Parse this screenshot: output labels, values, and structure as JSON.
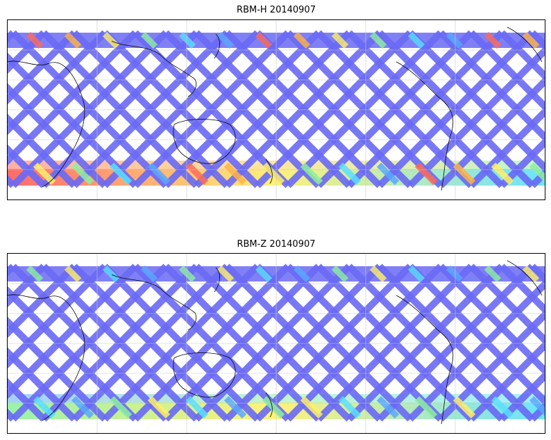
{
  "panels": [
    {
      "title": "RBM-H 20140907",
      "bands": [
        {
          "from": "#ff6b5a",
          "mid": "#ffd54a",
          "to": "#8ef0a0"
        },
        {
          "from": "#ff5a5a",
          "mid": "#fff06a",
          "to": "#5ae0ff"
        }
      ],
      "track_color": "#6a6af5",
      "accent_colors": [
        "#ff6b5a",
        "#ffb347",
        "#fff06a",
        "#8ef0a0",
        "#5ae0ff",
        "#5aa8ff"
      ]
    },
    {
      "title": "RBM-Z 20140907",
      "bands": [
        {
          "from": "#5aa8ff",
          "mid": "#8ef0a0",
          "to": "#5ae0ff"
        },
        {
          "from": "#8ef0a0",
          "mid": "#fff06a",
          "to": "#5ae0ff"
        }
      ],
      "track_color": "#6a6af5",
      "accent_colors": [
        "#8ef0a0",
        "#fff06a",
        "#5ae0ff",
        "#5aa8ff"
      ]
    }
  ],
  "gridline_color": "#c8c8c8",
  "coastline_color": "#000000"
}
